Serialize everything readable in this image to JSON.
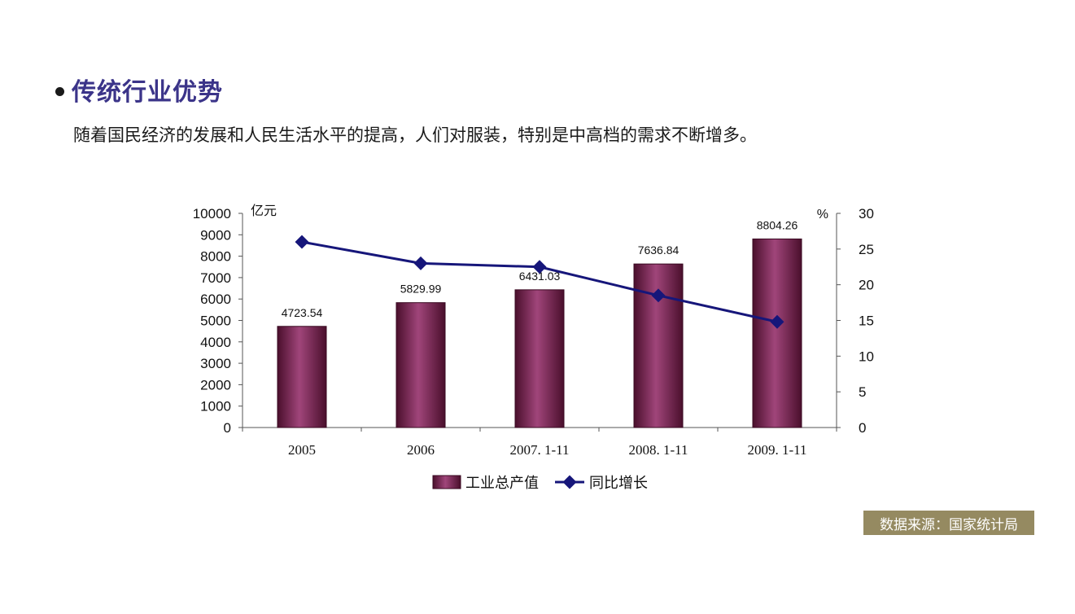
{
  "heading": "传统行业优势",
  "subtext": "随着国民经济的发展和人民生活水平的提高，人们对服装，特别是中高档的需求不断增多。",
  "source": "数据来源：国家统计局",
  "colors": {
    "heading": "#3b3489",
    "bar": "#7a1f4a",
    "line": "#16167a",
    "badge": "#958a61"
  },
  "chart_data": {
    "type": "bar",
    "categories": [
      "2005",
      "2006",
      "2007. 1-11",
      "2008. 1-11",
      "2009. 1-11"
    ],
    "series": [
      {
        "name": "工业总产值",
        "type": "bar",
        "axis": "left",
        "values": [
          4723.54,
          5829.99,
          6431.03,
          7636.84,
          8804.26
        ],
        "labels": [
          "4723.54",
          "5829.99",
          "6431.03",
          "7636.84",
          "8804.26"
        ]
      },
      {
        "name": "同比增长",
        "type": "line",
        "axis": "right",
        "values": [
          26,
          23,
          22.5,
          18.5,
          14.8
        ]
      }
    ],
    "y_left": {
      "label": "亿元",
      "lim": [
        0,
        10000
      ],
      "ticks": [
        0,
        1000,
        2000,
        3000,
        4000,
        5000,
        6000,
        7000,
        8000,
        9000,
        10000
      ]
    },
    "y_right": {
      "label": "%",
      "lim": [
        0,
        30
      ],
      "ticks": [
        0,
        5,
        10,
        15,
        20,
        25,
        30
      ]
    },
    "grid": false,
    "legend": "bottom"
  }
}
